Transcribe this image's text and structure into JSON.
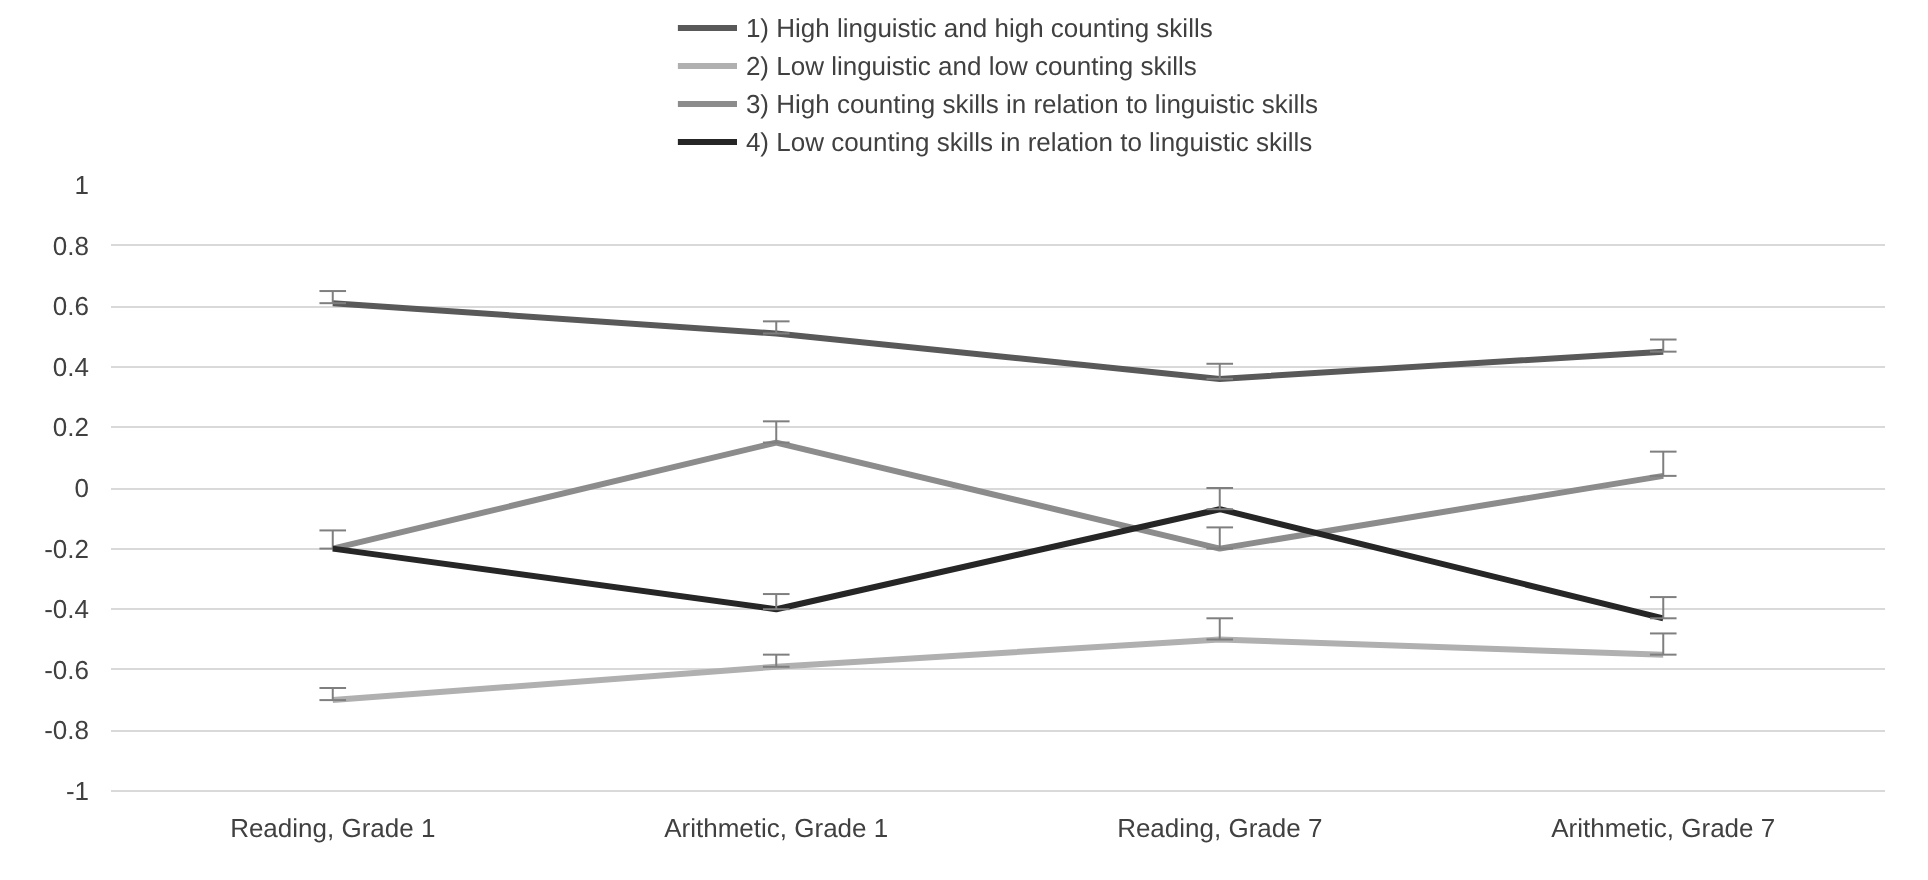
{
  "chart_data": {
    "type": "line",
    "categories": [
      "Reading, Grade 1",
      "Arithmetic, Grade 1",
      "Reading, Grade 7",
      "Arithmetic, Grade 7"
    ],
    "series": [
      {
        "name": "1) High linguistic and high counting skills",
        "color": "#595959",
        "values": [
          0.61,
          0.51,
          0.36,
          0.45
        ],
        "errors": [
          [
            0.61,
            0.65
          ],
          [
            0.51,
            0.55
          ],
          [
            0.36,
            0.41
          ],
          [
            0.45,
            0.49
          ]
        ]
      },
      {
        "name": "2) Low linguistic and low counting skills",
        "color": "#b0b0b0",
        "values": [
          -0.7,
          -0.59,
          -0.5,
          -0.55
        ],
        "errors": [
          [
            -0.7,
            -0.66
          ],
          [
            -0.59,
            -0.55
          ],
          [
            -0.5,
            -0.43
          ],
          [
            -0.55,
            -0.48
          ]
        ]
      },
      {
        "name": "3) High counting skills in relation to linguistic skills",
        "color": "#8c8c8c",
        "values": [
          -0.2,
          0.15,
          -0.2,
          0.04
        ],
        "errors": [
          [
            -0.2,
            -0.14
          ],
          [
            0.15,
            0.22
          ],
          [
            -0.2,
            -0.13
          ],
          [
            0.04,
            0.12
          ]
        ]
      },
      {
        "name": "4) Low counting skills in relation to linguistic skills",
        "color": "#262626",
        "values": [
          -0.2,
          -0.4,
          -0.07,
          -0.43
        ],
        "errors": [
          null,
          [
            -0.4,
            -0.35
          ],
          [
            -0.07,
            0.0
          ],
          [
            -0.43,
            -0.36
          ]
        ]
      }
    ],
    "ylim": [
      -1,
      1
    ],
    "yticks": [
      -1,
      -0.8,
      -0.6,
      -0.4,
      -0.2,
      0,
      0.2,
      0.4,
      0.6,
      0.8,
      1
    ],
    "grid": "y",
    "legend": "top",
    "marker": "none",
    "line_style": "solid"
  }
}
